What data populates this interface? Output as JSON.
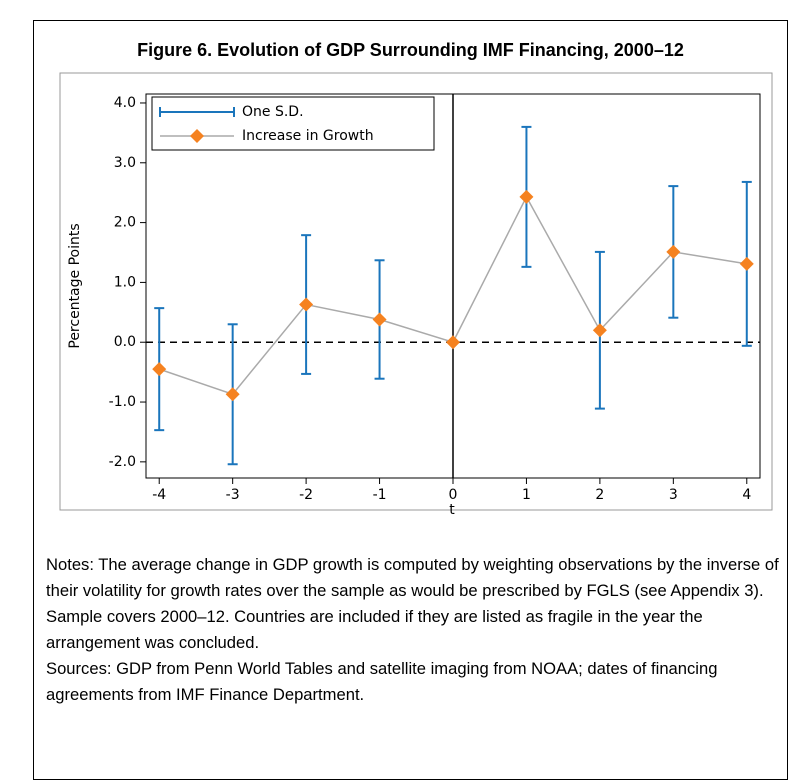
{
  "chart_data": {
    "type": "errorline",
    "title": "Figure 6. Evolution of GDP Surrounding IMF Financing, 2000–12",
    "xlabel": "t",
    "ylabel": "Percentage Points",
    "x": [
      -4,
      -3,
      -2,
      -1,
      0,
      1,
      2,
      3,
      4
    ],
    "series": [
      {
        "name": "Increase in Growth",
        "color": "#f58220",
        "line_color": "#aaaaaa",
        "values": [
          -0.45,
          -0.87,
          0.63,
          0.38,
          0,
          2.43,
          0.2,
          1.51,
          1.31
        ],
        "error": [
          1.02,
          1.17,
          1.16,
          0.99,
          null,
          1.17,
          1.31,
          1.1,
          1.37
        ],
        "error_name": "One S.D.",
        "error_color": "#1a75bc"
      }
    ],
    "xlim": [
      -4.18,
      4.18
    ],
    "ylim": [
      -2.27,
      4.15
    ],
    "xticks": [
      -4,
      -3,
      -2,
      -1,
      0,
      1,
      2,
      3,
      4
    ],
    "yticks": [
      {
        "value": -2,
        "label": "-2.0"
      },
      {
        "value": -1,
        "label": "-1.0"
      },
      {
        "value": 0,
        "label": "0.0"
      },
      {
        "value": 1,
        "label": "1.0"
      },
      {
        "value": 2,
        "label": "2.0"
      },
      {
        "value": 3,
        "label": "3.0"
      },
      {
        "value": 4,
        "label": "4.0"
      }
    ],
    "vline": 0,
    "hline": 0,
    "legend": "upper left",
    "grid": false
  },
  "notes": [
    "Notes: The average change in GDP growth is computed by weighting observations by the inverse of their volatility for growth rates over the sample as would be prescribed by FGLS (see Appendix 3). Sample covers 2000–12. Countries are included if they are listed as fragile in the year the arrangement was concluded.",
    "Sources: GDP from Penn World Tables and satellite imaging from NOAA; dates of financing agreements from IMF Finance Department."
  ]
}
